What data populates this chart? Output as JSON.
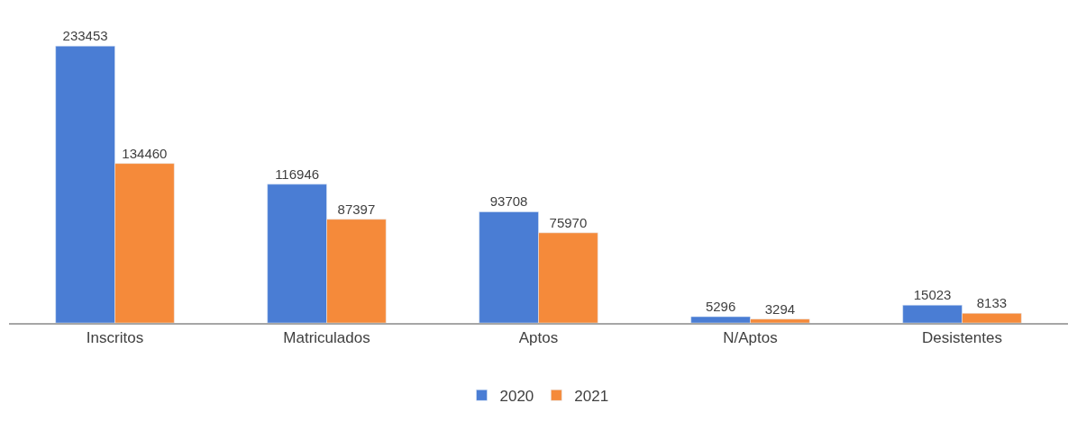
{
  "chart_data": {
    "type": "bar",
    "categories": [
      "Inscritos",
      "Matriculados",
      "Aptos",
      "N/Aptos",
      "Desistentes"
    ],
    "series": [
      {
        "name": "2020",
        "color": "#4a7dd4",
        "values": [
          233453,
          116946,
          93708,
          5296,
          15023
        ]
      },
      {
        "name": "2021",
        "color": "#f58a3a",
        "values": [
          134460,
          87397,
          75970,
          3294,
          8133
        ]
      }
    ],
    "data_labels": true,
    "legend": "bottom"
  }
}
